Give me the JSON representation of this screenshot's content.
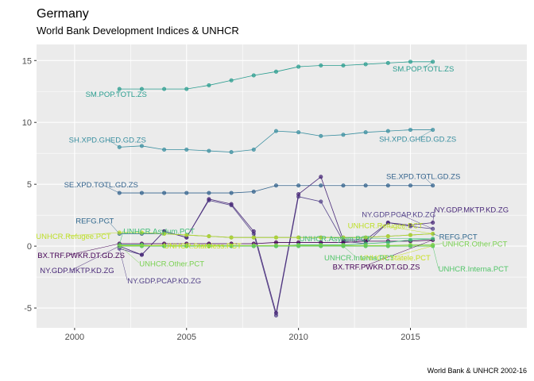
{
  "chart_data": {
    "type": "line",
    "title": "Germany",
    "subtitle": "World Bank Development Indices & UNHCR",
    "caption": "World Bank & UNHCR 2002-16",
    "xlabel": "",
    "ylabel": "",
    "xlim": [
      1998.3,
      2020.2
    ],
    "ylim": [
      -6.6,
      16.3
    ],
    "x_ticks": [
      2000,
      2005,
      2010,
      2015
    ],
    "y_ticks": [
      -5,
      0,
      5,
      10,
      15
    ],
    "grid": true,
    "legend": "none",
    "x": [
      2002,
      2003,
      2004,
      2005,
      2006,
      2007,
      2008,
      2009,
      2010,
      2011,
      2012,
      2013,
      2014,
      2015,
      2016
    ],
    "series": [
      {
        "name": "SM.POP.TOTL.ZS",
        "color": "#2a9d8f",
        "values": [
          12.7,
          12.7,
          12.7,
          12.7,
          13.0,
          13.4,
          13.8,
          14.1,
          14.5,
          14.6,
          14.6,
          14.7,
          14.8,
          14.9,
          14.9
        ],
        "labels": [
          {
            "text": "SM.POP.TOTL.ZS",
            "at": "start"
          },
          {
            "text": "SM.POP.TOTL.ZS",
            "at": "end"
          }
        ]
      },
      {
        "name": "SH.XPD.GHED.GD.ZS",
        "color": "#3a8fa0",
        "values": [
          8.0,
          8.1,
          7.8,
          7.8,
          7.7,
          7.6,
          7.8,
          9.3,
          9.2,
          8.9,
          9.0,
          9.2,
          9.3,
          9.4,
          9.4
        ],
        "labels": [
          {
            "text": "SH.XPD.GHED.GD.ZS",
            "at": "start"
          },
          {
            "text": "SH.XPD.GHED.GD.ZS",
            "at": "end"
          }
        ]
      },
      {
        "name": "SE.XPD.TOTL.GD.ZS",
        "color": "#33638d",
        "values": [
          4.3,
          4.3,
          4.3,
          4.3,
          4.3,
          4.3,
          4.4,
          4.9,
          4.9,
          4.9,
          4.9,
          4.9,
          4.9,
          4.9,
          4.9
        ],
        "labels": [
          {
            "text": "SE.XPD.TOTL.GD.ZS",
            "at": "start"
          },
          {
            "text": "SE.XPD.TOTL.GD.ZS",
            "at": "end"
          }
        ]
      },
      {
        "name": "NY.GDP.PCAP.KD.ZG",
        "color": "#55448a",
        "values": [
          -0.2,
          -0.7,
          1.2,
          0.7,
          3.7,
          3.3,
          1.0,
          -5.6,
          4.0,
          3.6,
          0.4,
          0.2,
          1.9,
          1.6,
          1.4
        ],
        "labels": [
          {
            "text": "NY.GDP.PCAP.KD.ZG",
            "at": "start"
          },
          {
            "text": "NY.GDP.PCAP.KD.ZG",
            "at": "end"
          }
        ]
      },
      {
        "name": "NY.GDP.MKTP.KD.ZG",
        "color": "#482878",
        "values": [
          0.0,
          -0.7,
          1.2,
          0.7,
          3.8,
          3.4,
          1.2,
          -5.4,
          4.2,
          5.6,
          0.5,
          0.5,
          1.9,
          1.7,
          1.9
        ],
        "labels": [
          {
            "text": "NY.GDP.MKTP.KD.ZG",
            "at": "start"
          },
          {
            "text": "NY.GDP.MKTP.KD.ZG",
            "at": "end"
          }
        ]
      },
      {
        "name": "BX.TRF.PWKR.DT.GD.ZS",
        "color": "#440154",
        "values": [
          0.2,
          0.2,
          0.2,
          0.2,
          0.2,
          0.2,
          0.2,
          0.3,
          0.3,
          0.3,
          0.3,
          0.4,
          0.4,
          0.4,
          0.5
        ],
        "labels": [
          {
            "text": "BX.TRF.PWKR.DT.GD.ZS",
            "at": "start"
          },
          {
            "text": "BX.TRF.PWKR.DT.GD.ZS",
            "at": "end"
          }
        ]
      },
      {
        "name": "REFG.PCT",
        "color": "#31688e",
        "values": [
          1.0,
          1.0,
          1.0,
          0.9,
          0.8,
          0.7,
          0.7,
          0.7,
          0.7,
          0.7,
          0.7,
          0.7,
          0.8,
          0.9,
          1.0
        ],
        "labels": [
          {
            "text": "REFG.PCT",
            "at": "start"
          },
          {
            "text": "REFG.PCT",
            "at": "end"
          }
        ]
      },
      {
        "name": "UNHCR.Refugee.PCT",
        "color": "#bddf26",
        "values": [
          1.1,
          1.1,
          1.0,
          0.9,
          0.8,
          0.7,
          0.7,
          0.7,
          0.7,
          0.7,
          0.7,
          0.7,
          0.8,
          0.9,
          1.0
        ],
        "labels": [
          {
            "text": "UNHCR.Refugee.PCT",
            "at": "start"
          },
          {
            "text": "UNHCR.Refugee.PCT",
            "at": "end"
          }
        ]
      },
      {
        "name": "UNHCR.Asylum.PCT",
        "color": "#3cbc75",
        "values": [
          0.1,
          0.1,
          0.0,
          0.0,
          0.0,
          0.0,
          0.0,
          0.0,
          0.1,
          0.1,
          0.1,
          0.2,
          0.3,
          0.5,
          0.6
        ],
        "labels": [
          {
            "text": "UNHCR.Asylum.PCT",
            "at": "start"
          },
          {
            "text": "UNHCR.Asylum.PCT",
            "at": "end"
          }
        ]
      },
      {
        "name": "UNHCR.Other.PCT",
        "color": "#7ad151",
        "values": [
          0.05,
          0.05,
          0.05,
          0.05,
          0.05,
          0.05,
          0.05,
          0.05,
          0.05,
          0.05,
          0.05,
          0.05,
          0.05,
          0.1,
          0.1
        ],
        "labels": [
          {
            "text": "UNHCR.Other.PCT",
            "at": "start"
          },
          {
            "text": "UNHCR.Other.PCT",
            "at": "end"
          }
        ]
      },
      {
        "name": "UNHCR.Stateless.PCT",
        "color": "#c8e020",
        "values": [
          0.02,
          0.02,
          0.02,
          0.02,
          0.02,
          0.02,
          0.02,
          0.02,
          0.02,
          0.02,
          0.02,
          0.02,
          0.02,
          0.02,
          0.02
        ],
        "labels": [
          {
            "text": "UNHCR.Stateless.PCT",
            "at": "start"
          },
          {
            "text": "UNHCR.Statele.PCT",
            "at": "end"
          }
        ]
      },
      {
        "name": "UNHCR.Interna.PCT",
        "color": "#52c569",
        "values": [
          0.0,
          0.0,
          0.0,
          0.0,
          0.0,
          0.0,
          0.0,
          0.0,
          0.0,
          0.0,
          0.0,
          0.0,
          0.0,
          0.0,
          0.0
        ],
        "labels": [
          {
            "text": "UNHCR.Interna.PCT",
            "at": "mid"
          },
          {
            "text": "UNHCR.Interna.PCT",
            "at": "end"
          }
        ]
      }
    ]
  }
}
